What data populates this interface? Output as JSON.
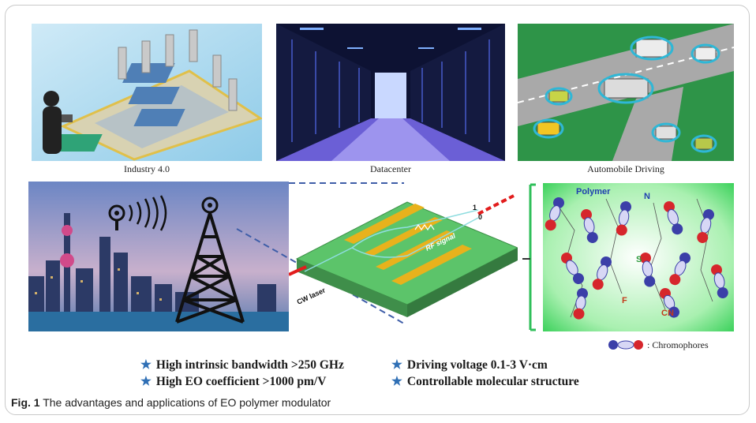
{
  "panels": {
    "industry": {
      "caption": "Industry 4.0"
    },
    "datacenter": {
      "caption": "Datacenter"
    },
    "automobile": {
      "caption": "Automobile Driving"
    }
  },
  "modulator": {
    "signal_label": "RF signal",
    "laser_label": "CW laser",
    "bit_one": "1",
    "bit_zero": "0"
  },
  "molecule": {
    "polymer_label": "Polymer",
    "atom_n": "N",
    "atom_s": "S",
    "atom_f": "F",
    "atom_cn": "CN",
    "legend_text": ": Chromophores"
  },
  "advantages": [
    "High intrinsic bandwidth >250 GHz",
    "Driving voltage 0.1-3 V·cm",
    "High EO coefficient >1000 pm/V",
    "Controllable molecular structure"
  ],
  "figure_caption": {
    "label": "Fig. 1",
    "text": " The advantages and applications of EO polymer modulator"
  },
  "colors": {
    "accent_star": "#2f6fb5",
    "chip_green": "#5cc46a",
    "electrode_gold": "#e8b21c",
    "laser_red": "#e21d1d"
  }
}
